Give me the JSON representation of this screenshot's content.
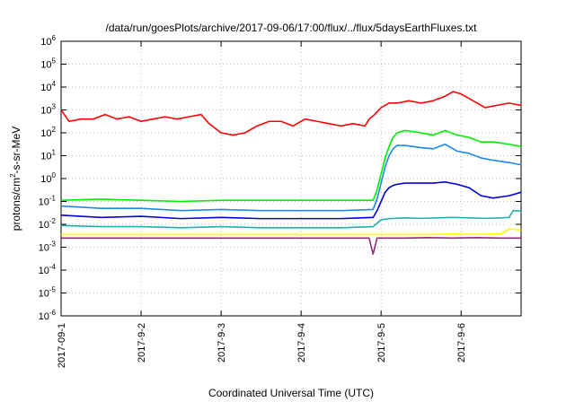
{
  "chart_data": {
    "type": "line",
    "title": "/data/run/goesPlots/archive/2017-09-06/17:00/flux/../flux/5daysEarthFluxes.txt",
    "xlabel": "Coordinated Universal Time (UTC)",
    "ylabel": {
      "pre": "protons/cm",
      "sup": "2",
      "post": "-s-sr-MeV"
    },
    "y_scale": "log",
    "ylim_exp": [
      -6,
      6
    ],
    "y_ticks": [
      {
        "base": "10",
        "exp": "-6",
        "v": -6
      },
      {
        "base": "10",
        "exp": "-5",
        "v": -5
      },
      {
        "base": "10",
        "exp": "-4",
        "v": -4
      },
      {
        "base": "10",
        "exp": "-3",
        "v": -3
      },
      {
        "base": "10",
        "exp": "-2",
        "v": -2
      },
      {
        "base": "10",
        "exp": "-1",
        "v": -1
      },
      {
        "base": "10",
        "exp": "0",
        "v": 0
      },
      {
        "base": "10",
        "exp": "1",
        "v": 1
      },
      {
        "base": "10",
        "exp": "2",
        "v": 2
      },
      {
        "base": "10",
        "exp": "3",
        "v": 3
      },
      {
        "base": "10",
        "exp": "4",
        "v": 4
      },
      {
        "base": "10",
        "exp": "5",
        "v": 5
      },
      {
        "base": "10",
        "exp": "6",
        "v": 6
      }
    ],
    "xlim_days": [
      0,
      5.75
    ],
    "x_ticks": [
      {
        "label": "2017-09-1",
        "day": 0
      },
      {
        "label": "2017-9-2",
        "day": 1
      },
      {
        "label": "2017-9-3",
        "day": 2
      },
      {
        "label": "2017-9-4",
        "day": 3
      },
      {
        "label": "2017-9-5",
        "day": 4
      },
      {
        "label": "2017-9-6",
        "day": 5
      }
    ],
    "grid": true,
    "legend": "none",
    "series": [
      {
        "color": "#ff0000",
        "x": [
          0,
          0.1,
          0.25,
          0.4,
          0.55,
          0.7,
          0.85,
          1.0,
          1.15,
          1.3,
          1.45,
          1.6,
          1.75,
          1.85,
          2.0,
          2.15,
          2.3,
          2.45,
          2.6,
          2.75,
          2.9,
          3.05,
          3.2,
          3.35,
          3.5,
          3.65,
          3.8,
          3.85,
          3.92,
          4.0,
          4.1,
          4.2,
          4.35,
          4.5,
          4.65,
          4.8,
          4.9,
          5.0,
          5.15,
          5.3,
          5.45,
          5.6,
          5.75
        ],
        "y": [
          3.0,
          2.5,
          2.6,
          2.6,
          2.8,
          2.6,
          2.7,
          2.5,
          2.6,
          2.7,
          2.6,
          2.7,
          2.8,
          2.4,
          2.0,
          1.9,
          2.0,
          2.3,
          2.5,
          2.5,
          2.3,
          2.6,
          2.5,
          2.4,
          2.3,
          2.4,
          2.3,
          2.6,
          2.8,
          3.1,
          3.3,
          3.3,
          3.4,
          3.3,
          3.4,
          3.6,
          3.8,
          3.7,
          3.4,
          3.1,
          3.2,
          3.3,
          3.2
        ]
      },
      {
        "color": "#00ee00",
        "x": [
          0,
          0.5,
          1.0,
          1.5,
          2.0,
          2.5,
          3.0,
          3.5,
          3.9,
          3.95,
          4.0,
          4.05,
          4.1,
          4.15,
          4.2,
          4.3,
          4.5,
          4.65,
          4.8,
          4.95,
          5.1,
          5.25,
          5.4,
          5.6,
          5.75
        ],
        "y": [
          -0.95,
          -0.9,
          -0.95,
          -1.0,
          -0.95,
          -0.95,
          -0.95,
          -0.95,
          -0.95,
          -0.5,
          0.2,
          0.9,
          1.4,
          1.8,
          2.0,
          2.1,
          2.0,
          1.9,
          2.1,
          1.9,
          1.8,
          1.6,
          1.6,
          1.5,
          1.4
        ]
      },
      {
        "color": "#1e88e5",
        "x": [
          0,
          0.5,
          1.0,
          1.5,
          2.0,
          2.5,
          3.0,
          3.5,
          3.9,
          3.95,
          4.0,
          4.05,
          4.1,
          4.15,
          4.2,
          4.3,
          4.5,
          4.65,
          4.8,
          4.95,
          5.1,
          5.25,
          5.4,
          5.6,
          5.75
        ],
        "y": [
          -1.2,
          -1.3,
          -1.3,
          -1.4,
          -1.35,
          -1.4,
          -1.4,
          -1.4,
          -1.35,
          -0.9,
          -0.2,
          0.5,
          1.0,
          1.3,
          1.45,
          1.45,
          1.35,
          1.3,
          1.5,
          1.2,
          1.1,
          0.9,
          0.8,
          0.7,
          0.6
        ]
      },
      {
        "color": "#0000dd",
        "x": [
          0,
          0.5,
          1.0,
          1.5,
          2.0,
          2.5,
          3.0,
          3.5,
          3.9,
          3.95,
          4.0,
          4.05,
          4.1,
          4.15,
          4.2,
          4.3,
          4.5,
          4.65,
          4.8,
          4.95,
          5.1,
          5.25,
          5.4,
          5.6,
          5.75
        ],
        "y": [
          -1.6,
          -1.7,
          -1.65,
          -1.75,
          -1.7,
          -1.75,
          -1.75,
          -1.75,
          -1.7,
          -1.4,
          -1.0,
          -0.6,
          -0.4,
          -0.3,
          -0.25,
          -0.2,
          -0.2,
          -0.2,
          -0.15,
          -0.25,
          -0.4,
          -0.75,
          -0.85,
          -0.75,
          -0.6
        ]
      },
      {
        "color": "#20b2aa",
        "x": [
          0,
          0.5,
          1.0,
          1.5,
          2.0,
          2.5,
          3.0,
          3.5,
          3.9,
          3.95,
          4.0,
          4.1,
          4.3,
          4.5,
          4.7,
          4.9,
          5.1,
          5.3,
          5.5,
          5.6,
          5.65,
          5.75
        ],
        "y": [
          -2.05,
          -2.1,
          -2.1,
          -2.15,
          -2.1,
          -2.15,
          -2.15,
          -2.15,
          -2.1,
          -1.95,
          -1.8,
          -1.75,
          -1.72,
          -1.74,
          -1.72,
          -1.7,
          -1.72,
          -1.74,
          -1.72,
          -1.7,
          -1.4,
          -1.42
        ]
      },
      {
        "color": "#ffff00",
        "x": [
          0,
          0.5,
          1.0,
          1.5,
          2.0,
          2.5,
          3.0,
          3.5,
          3.9,
          4.0,
          4.3,
          4.6,
          4.9,
          5.2,
          5.5,
          5.6,
          5.75
        ],
        "y": [
          -2.45,
          -2.45,
          -2.45,
          -2.45,
          -2.45,
          -2.45,
          -2.45,
          -2.45,
          -2.45,
          -2.45,
          -2.45,
          -2.45,
          -2.42,
          -2.44,
          -2.42,
          -2.2,
          -2.25
        ]
      },
      {
        "color": "#8b2f75",
        "x": [
          0,
          0.5,
          1.0,
          1.5,
          2.0,
          2.5,
          3.0,
          3.5,
          3.85,
          3.9,
          3.95,
          4.0,
          4.3,
          4.6,
          4.9,
          5.2,
          5.5,
          5.75
        ],
        "y": [
          -2.6,
          -2.6,
          -2.6,
          -2.6,
          -2.6,
          -2.6,
          -2.6,
          -2.6,
          -2.6,
          -3.3,
          -2.6,
          -2.6,
          -2.6,
          -2.58,
          -2.6,
          -2.58,
          -2.6,
          -2.6
        ]
      }
    ]
  }
}
